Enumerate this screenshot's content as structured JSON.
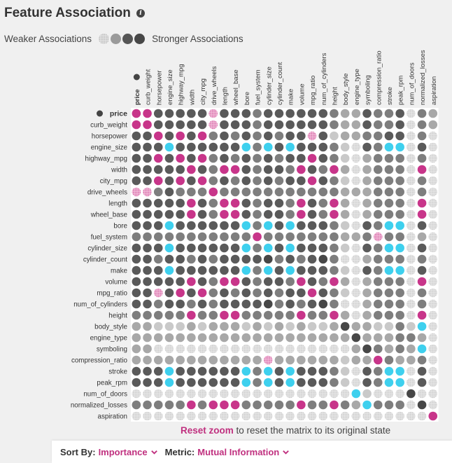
{
  "header": {
    "title": "Feature Association",
    "info_glyph": "i"
  },
  "legend": {
    "weaker_label": "Weaker Associations",
    "stronger_label": "Stronger Associations"
  },
  "matrix": {
    "features": [
      "price",
      "curb_weight",
      "horsepower",
      "engine_size",
      "highway_mpg",
      "width",
      "city_mpg",
      "drive_wheels",
      "length",
      "wheel_base",
      "bore",
      "fuel_system",
      "cylinder_size",
      "cylinder_count",
      "make",
      "volume",
      "mpg_ratio",
      "num_of_cylinders",
      "height",
      "body_style",
      "engine_type",
      "symboling",
      "compression_ratio",
      "stroke",
      "peak_rpm",
      "num_of_doors",
      "normalized_losses",
      "aspiration"
    ],
    "highlighted_feature": "price",
    "colors": {
      "strong_pink": "#c8358a",
      "cyan": "#3ed0ee",
      "darker": "#474747",
      "dark": "#5a5a5a",
      "mid": "#7e7e7e",
      "light": "#a8a8a8",
      "lighter": "#c9c9c9",
      "faint": "#e6e6e6",
      "cell_bg": "#ffffff"
    },
    "strength_codes": "P=strong pink, C=cyan, S=pink dotted, D=darker, d=dark, m=mid, l=light, x=lighter, f=faint, _=empty",
    "cells": [
      "PPdddddSdddmddddddmlldmmdfml",
      "PPdddddSdddmddddddmlldmmdfml",
      "ddPdPdPmdmdmdmddSdxllmmddfmf",
      "dddCddddddCmCdCdddmxfdmCCfdf",
      "ddPdPdPmdmdmdmddPdmxflmmmfmf",
      "dddddPdmPPdmddmPdmPlflmmmfPf",
      "ddPdPdPmdmdmdmddPdmxflmmmfmf",
      "SSmdmmmPmmmmmmmmmmmlllmmmfmf",
      "dddddPdmPPdmddmPdmPlflmmmfPf",
      "dddddPdmPPdmddmPdmPlflmmmfPf",
      "dddCddddddCmCdCdddmxfdmCCfdf",
      "mmmmmmmmmmmPmmmmmmmllmSmmflf",
      "dddCddddddCmCdCdddmxfdmCCfdf",
      "ddmddmdmddddDmdmdDmfflmmmfmf",
      "dddCddddddCmCdCdddmxfdmCCfdf",
      "dddddPdmPPdmddmPdmPlflmmmfPf",
      "ddSdPdPmdmdmdmddPdmxflmmmfmf",
      "ddmddmdmddddDmdmdDmfflmmmfmf",
      "mmmmmPmmPPmmmmmPmmPlflmmmfPf",
      "llxxxlxlllxlxlxlxxlDllxxmxCf",
      "llllllllllllllllllllDlllmmlf",
      "llfffffffffffffffffflDmlmlCf",
      "llllllllllllSllllllxllPmllmf",
      "dddCddddddCmCdCdddmxfdmCCfdf",
      "dddCddddddCmCdCdddmxfdmCCfdf",
      "ffffffffffffffffffffCxfffDff",
      "mmmmmPmPPPmmmmmPmmPmlCmmmfDf",
      "fffffffffffffffffffffffffffP"
    ]
  },
  "footer": {
    "reset_link": "Reset zoom",
    "reset_text": "to reset the matrix to its original state"
  },
  "sort": {
    "sort_label": "Sort By:",
    "sort_value": "Importance",
    "metric_label": "Metric:",
    "metric_value": "Mutual Information"
  }
}
